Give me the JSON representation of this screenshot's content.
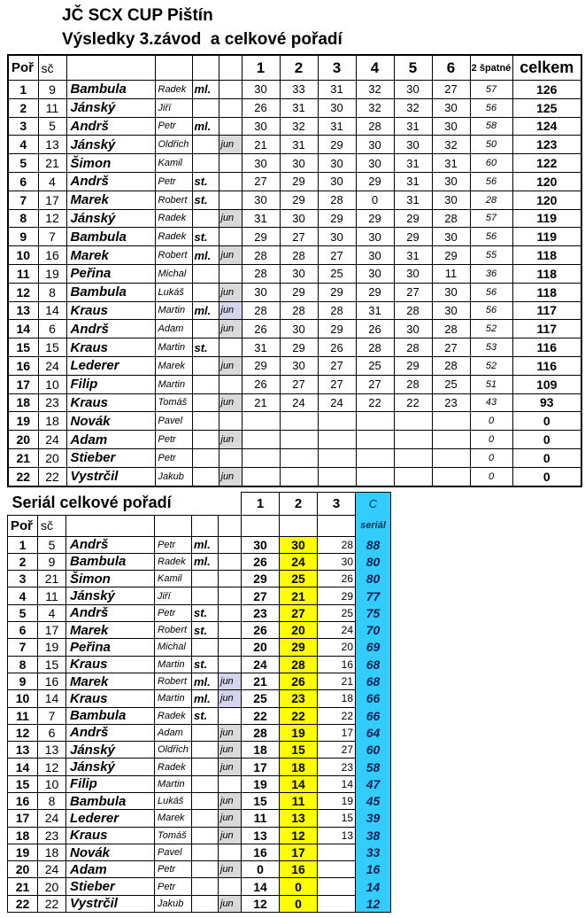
{
  "page": {
    "title": "JČ SCX CUP Pištín",
    "subtitle": "Výsledky 3.závod  a celkové pořadí"
  },
  "colors": {
    "highlight_yellow": "#ffff00",
    "serial_cyan": "#33ccff",
    "junior_gray": "#d9d9d9",
    "junior_lavender": "#d4d4ec",
    "serial_text": "#17305c"
  },
  "table1": {
    "headers": {
      "por": "Poř",
      "sc": "sč",
      "races": [
        "1",
        "2",
        "3",
        "4",
        "5",
        "6"
      ],
      "spatne": "2 špatné",
      "celkem": "celkem"
    },
    "rows": [
      {
        "por": "1",
        "sc": "9",
        "surname": "Bambula",
        "first": "Radek",
        "cat": "ml.",
        "jun": "",
        "jun_bg": "",
        "races": [
          "30",
          "33",
          "31",
          "32",
          "30",
          "27"
        ],
        "spatne": "57",
        "celkem": "126"
      },
      {
        "por": "2",
        "sc": "11",
        "surname": "Jánský",
        "first": "Jiří",
        "cat": "",
        "jun": "",
        "jun_bg": "",
        "races": [
          "26",
          "31",
          "30",
          "32",
          "32",
          "30"
        ],
        "spatne": "56",
        "celkem": "125"
      },
      {
        "por": "3",
        "sc": "5",
        "surname": "Andrš",
        "first": "Petr",
        "cat": "ml.",
        "jun": "",
        "jun_bg": "",
        "races": [
          "30",
          "32",
          "31",
          "28",
          "31",
          "30"
        ],
        "spatne": "58",
        "celkem": "124"
      },
      {
        "por": "4",
        "sc": "13",
        "surname": "Jánský",
        "first": "Oldřich",
        "cat": "",
        "jun": "jun",
        "jun_bg": "gray",
        "races": [
          "21",
          "31",
          "29",
          "30",
          "30",
          "32"
        ],
        "spatne": "50",
        "celkem": "123"
      },
      {
        "por": "5",
        "sc": "21",
        "surname": "Šimon",
        "first": "Kamil",
        "cat": "",
        "jun": "",
        "jun_bg": "",
        "races": [
          "30",
          "30",
          "30",
          "30",
          "31",
          "31"
        ],
        "spatne": "60",
        "celkem": "122"
      },
      {
        "por": "6",
        "sc": "4",
        "surname": "Andrš",
        "first": "Petr",
        "cat": "st.",
        "jun": "",
        "jun_bg": "",
        "races": [
          "27",
          "29",
          "30",
          "29",
          "31",
          "30"
        ],
        "spatne": "56",
        "celkem": "120"
      },
      {
        "por": "7",
        "sc": "17",
        "surname": "Marek",
        "first": "Robert",
        "cat": "st.",
        "jun": "",
        "jun_bg": "",
        "races": [
          "30",
          "29",
          "28",
          "0",
          "31",
          "30"
        ],
        "spatne": "28",
        "celkem": "120"
      },
      {
        "por": "8",
        "sc": "12",
        "surname": "Jánský",
        "first": "Radek",
        "cat": "",
        "jun": "jun",
        "jun_bg": "gray",
        "races": [
          "31",
          "30",
          "29",
          "29",
          "29",
          "28"
        ],
        "spatne": "57",
        "celkem": "119"
      },
      {
        "por": "9",
        "sc": "7",
        "surname": "Bambula",
        "first": "Radek",
        "cat": "st.",
        "jun": "",
        "jun_bg": "",
        "races": [
          "29",
          "27",
          "30",
          "30",
          "29",
          "30"
        ],
        "spatne": "56",
        "celkem": "119"
      },
      {
        "por": "10",
        "sc": "16",
        "surname": "Marek",
        "first": "Robert",
        "cat": "ml.",
        "jun": "jun",
        "jun_bg": "gray",
        "races": [
          "28",
          "28",
          "27",
          "30",
          "31",
          "29"
        ],
        "spatne": "55",
        "celkem": "118"
      },
      {
        "por": "11",
        "sc": "19",
        "surname": "Peřina",
        "first": "Michal",
        "cat": "",
        "jun": "",
        "jun_bg": "",
        "races": [
          "28",
          "30",
          "25",
          "30",
          "30",
          "11"
        ],
        "spatne": "36",
        "celkem": "118"
      },
      {
        "por": "12",
        "sc": "8",
        "surname": "Bambula",
        "first": "Lukáš",
        "cat": "",
        "jun": "jun",
        "jun_bg": "gray",
        "races": [
          "30",
          "29",
          "29",
          "29",
          "27",
          "30"
        ],
        "spatne": "56",
        "celkem": "118"
      },
      {
        "por": "13",
        "sc": "14",
        "surname": "Kraus",
        "first": "Martin",
        "cat": "ml.",
        "jun": "jun",
        "jun_bg": "lav",
        "races": [
          "28",
          "28",
          "28",
          "31",
          "28",
          "30"
        ],
        "spatne": "56",
        "celkem": "117"
      },
      {
        "por": "14",
        "sc": "6",
        "surname": "Andrš",
        "first": "Adam",
        "cat": "",
        "jun": "jun",
        "jun_bg": "gray",
        "races": [
          "26",
          "30",
          "29",
          "26",
          "30",
          "28"
        ],
        "spatne": "52",
        "celkem": "117"
      },
      {
        "por": "15",
        "sc": "15",
        "surname": "Kraus",
        "first": "Martin",
        "cat": "st.",
        "jun": "",
        "jun_bg": "",
        "races": [
          "31",
          "29",
          "26",
          "28",
          "28",
          "27"
        ],
        "spatne": "53",
        "celkem": "116"
      },
      {
        "por": "16",
        "sc": "24",
        "surname": "Lederer",
        "first": "Marek",
        "cat": "",
        "jun": "jun",
        "jun_bg": "gray",
        "races": [
          "29",
          "30",
          "27",
          "25",
          "29",
          "28"
        ],
        "spatne": "52",
        "celkem": "116"
      },
      {
        "por": "17",
        "sc": "10",
        "surname": "Filip",
        "first": "Martin",
        "cat": "",
        "jun": "",
        "jun_bg": "",
        "races": [
          "26",
          "27",
          "27",
          "27",
          "28",
          "25"
        ],
        "spatne": "51",
        "celkem": "109"
      },
      {
        "por": "18",
        "sc": "23",
        "surname": "Kraus",
        "first": "Tomáš",
        "cat": "",
        "jun": "jun",
        "jun_bg": "gray",
        "races": [
          "21",
          "24",
          "24",
          "22",
          "22",
          "23"
        ],
        "spatne": "43",
        "celkem": "93"
      },
      {
        "por": "19",
        "sc": "18",
        "surname": "Novák",
        "first": "Pavel",
        "cat": "",
        "jun": "",
        "jun_bg": "",
        "races": [
          "",
          "",
          "",
          "",
          "",
          ""
        ],
        "spatne": "0",
        "celkem": "0"
      },
      {
        "por": "20",
        "sc": "24",
        "surname": "Adam",
        "first": "Petr",
        "cat": "",
        "jun": "jun",
        "jun_bg": "gray",
        "races": [
          "",
          "",
          "",
          "",
          "",
          ""
        ],
        "spatne": "0",
        "celkem": "0"
      },
      {
        "por": "21",
        "sc": "20",
        "surname": "Stieber",
        "first": "Petr",
        "cat": "",
        "jun": "",
        "jun_bg": "",
        "races": [
          "",
          "",
          "",
          "",
          "",
          ""
        ],
        "spatne": "0",
        "celkem": "0"
      },
      {
        "por": "22",
        "sc": "22",
        "surname": "Vystrčil",
        "first": "Jakub",
        "cat": "",
        "jun": "jun",
        "jun_bg": "gray",
        "races": [
          "",
          "",
          "",
          "",
          "",
          ""
        ],
        "spatne": "0",
        "celkem": "0"
      }
    ]
  },
  "table2": {
    "title": "Seriál celkové pořadí",
    "headers": {
      "por": "Poř",
      "sc": "sč",
      "races": [
        "1",
        "2",
        "3"
      ],
      "c": "C",
      "serial": "seriál"
    },
    "rows": [
      {
        "por": "1",
        "sc": "5",
        "surname": "Andrš",
        "first": "Petr",
        "cat": "ml.",
        "jun": "",
        "jun_bg": "",
        "r": [
          "30",
          "30",
          "28"
        ],
        "serial": "88"
      },
      {
        "por": "2",
        "sc": "9",
        "surname": "Bambula",
        "first": "Radek",
        "cat": "ml.",
        "jun": "",
        "jun_bg": "",
        "r": [
          "26",
          "24",
          "30"
        ],
        "serial": "80"
      },
      {
        "por": "3",
        "sc": "21",
        "surname": "Šimon",
        "first": "Kamil",
        "cat": "",
        "jun": "",
        "jun_bg": "",
        "r": [
          "29",
          "25",
          "26"
        ],
        "serial": "80"
      },
      {
        "por": "4",
        "sc": "11",
        "surname": "Jánský",
        "first": "Jiří",
        "cat": "",
        "jun": "",
        "jun_bg": "",
        "r": [
          "27",
          "21",
          "29"
        ],
        "serial": "77"
      },
      {
        "por": "5",
        "sc": "4",
        "surname": "Andrš",
        "first": "Petr",
        "cat": "st.",
        "jun": "",
        "jun_bg": "",
        "r": [
          "23",
          "27",
          "25"
        ],
        "serial": "75"
      },
      {
        "por": "6",
        "sc": "17",
        "surname": "Marek",
        "first": "Robert",
        "cat": "st.",
        "jun": "",
        "jun_bg": "",
        "r": [
          "26",
          "20",
          "24"
        ],
        "serial": "70"
      },
      {
        "por": "7",
        "sc": "19",
        "surname": "Peřina",
        "first": "Michal",
        "cat": "",
        "jun": "",
        "jun_bg": "",
        "r": [
          "20",
          "29",
          "20"
        ],
        "serial": "69"
      },
      {
        "por": "8",
        "sc": "15",
        "surname": "Kraus",
        "first": "Martin",
        "cat": "st.",
        "jun": "",
        "jun_bg": "",
        "r": [
          "24",
          "28",
          "16"
        ],
        "serial": "68"
      },
      {
        "por": "9",
        "sc": "16",
        "surname": "Marek",
        "first": "Robert",
        "cat": "ml.",
        "jun": "jun",
        "jun_bg": "lav",
        "r": [
          "21",
          "26",
          "21"
        ],
        "serial": "68"
      },
      {
        "por": "10",
        "sc": "14",
        "surname": "Kraus",
        "first": "Martin",
        "cat": "ml.",
        "jun": "jun",
        "jun_bg": "lav",
        "r": [
          "25",
          "23",
          "18"
        ],
        "serial": "66"
      },
      {
        "por": "11",
        "sc": "7",
        "surname": "Bambula",
        "first": "Radek",
        "cat": "st.",
        "jun": "",
        "jun_bg": "",
        "r": [
          "22",
          "22",
          "22"
        ],
        "serial": "66"
      },
      {
        "por": "12",
        "sc": "6",
        "surname": "Andrš",
        "first": "Adam",
        "cat": "",
        "jun": "jun",
        "jun_bg": "gray",
        "r": [
          "28",
          "19",
          "17"
        ],
        "serial": "64"
      },
      {
        "por": "13",
        "sc": "13",
        "surname": "Jánský",
        "first": "Oldřich",
        "cat": "",
        "jun": "jun",
        "jun_bg": "gray",
        "r": [
          "18",
          "15",
          "27"
        ],
        "serial": "60"
      },
      {
        "por": "14",
        "sc": "12",
        "surname": "Jánský",
        "first": "Radek",
        "cat": "",
        "jun": "jun",
        "jun_bg": "gray",
        "r": [
          "17",
          "18",
          "23"
        ],
        "serial": "58"
      },
      {
        "por": "15",
        "sc": "10",
        "surname": "Filip",
        "first": "Martin",
        "cat": "",
        "jun": "",
        "jun_bg": "",
        "r": [
          "19",
          "14",
          "14"
        ],
        "serial": "47"
      },
      {
        "por": "16",
        "sc": "8",
        "surname": "Bambula",
        "first": "Lukáš",
        "cat": "",
        "jun": "jun",
        "jun_bg": "gray",
        "r": [
          "15",
          "11",
          "19"
        ],
        "serial": "45"
      },
      {
        "por": "17",
        "sc": "24",
        "surname": "Lederer",
        "first": "Marek",
        "cat": "",
        "jun": "jun",
        "jun_bg": "gray",
        "r": [
          "11",
          "13",
          "15"
        ],
        "serial": "39"
      },
      {
        "por": "18",
        "sc": "23",
        "surname": "Kraus",
        "first": "Tomáš",
        "cat": "",
        "jun": "jun",
        "jun_bg": "gray",
        "r": [
          "13",
          "12",
          "13"
        ],
        "serial": "38"
      },
      {
        "por": "19",
        "sc": "18",
        "surname": "Novák",
        "first": "Pavel",
        "cat": "",
        "jun": "",
        "jun_bg": "",
        "r": [
          "16",
          "17",
          ""
        ],
        "serial": "33"
      },
      {
        "por": "20",
        "sc": "24",
        "surname": "Adam",
        "first": "Petr",
        "cat": "",
        "jun": "jun",
        "jun_bg": "gray",
        "r": [
          "0",
          "16",
          ""
        ],
        "serial": "16"
      },
      {
        "por": "21",
        "sc": "20",
        "surname": "Stieber",
        "first": "Petr",
        "cat": "",
        "jun": "",
        "jun_bg": "",
        "r": [
          "14",
          "0",
          ""
        ],
        "serial": "14"
      },
      {
        "por": "22",
        "sc": "22",
        "surname": "Vystrčil",
        "first": "Jakub",
        "cat": "",
        "jun": "jun",
        "jun_bg": "gray",
        "r": [
          "12",
          "0",
          ""
        ],
        "serial": "12"
      }
    ]
  }
}
